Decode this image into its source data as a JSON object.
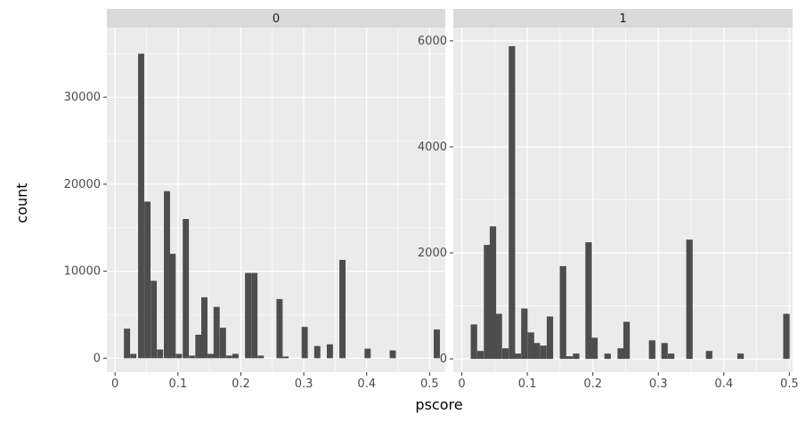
{
  "chart_data": {
    "type": "bar",
    "xlabel": "pscore",
    "ylabel": "count",
    "colors": {
      "bar": "#4d4d4d",
      "panel_background": "#ebebeb",
      "strip_background": "#d9d9d9",
      "gridline": "#ffffff"
    },
    "facets": [
      {
        "strip_label": "0",
        "xlim": [
          -0.013,
          0.525
        ],
        "ylim": [
          -1600,
          38000
        ],
        "x_ticks": [
          0,
          0.1,
          0.2,
          0.3,
          0.4,
          0.5
        ],
        "x_tick_labels": [
          "0",
          "0.1",
          "0.2",
          "0.3",
          "0.4",
          "0.5"
        ],
        "y_ticks": [
          0,
          10000,
          20000,
          30000
        ],
        "y_tick_labels": [
          "0",
          "10000",
          "20000",
          "30000"
        ],
        "bin_width": 0.0098,
        "bins": [
          {
            "x": 0.019,
            "count": 3400
          },
          {
            "x": 0.029,
            "count": 500
          },
          {
            "x": 0.0415,
            "count": 35000
          },
          {
            "x": 0.0515,
            "count": 18000
          },
          {
            "x": 0.0615,
            "count": 8900
          },
          {
            "x": 0.0715,
            "count": 1000
          },
          {
            "x": 0.0825,
            "count": 19200
          },
          {
            "x": 0.0915,
            "count": 12000
          },
          {
            "x": 0.1015,
            "count": 500
          },
          {
            "x": 0.1125,
            "count": 16000
          },
          {
            "x": 0.1225,
            "count": 300
          },
          {
            "x": 0.1325,
            "count": 2700
          },
          {
            "x": 0.142,
            "count": 7000
          },
          {
            "x": 0.152,
            "count": 500
          },
          {
            "x": 0.1615,
            "count": 5900
          },
          {
            "x": 0.1715,
            "count": 3500
          },
          {
            "x": 0.1815,
            "count": 300
          },
          {
            "x": 0.1915,
            "count": 500
          },
          {
            "x": 0.2115,
            "count": 9800
          },
          {
            "x": 0.2215,
            "count": 9800
          },
          {
            "x": 0.2315,
            "count": 300
          },
          {
            "x": 0.2615,
            "count": 6800
          },
          {
            "x": 0.271,
            "count": 200
          },
          {
            "x": 0.3015,
            "count": 3600
          },
          {
            "x": 0.3215,
            "count": 1400
          },
          {
            "x": 0.3415,
            "count": 1600
          },
          {
            "x": 0.3615,
            "count": 11300
          },
          {
            "x": 0.4015,
            "count": 1100
          },
          {
            "x": 0.4415,
            "count": 900
          },
          {
            "x": 0.5115,
            "count": 3300
          }
        ]
      },
      {
        "strip_label": "1",
        "xlim": [
          -0.013,
          0.505
        ],
        "ylim": [
          -250,
          6250
        ],
        "x_ticks": [
          0,
          0.1,
          0.2,
          0.3,
          0.4,
          0.5
        ],
        "x_tick_labels": [
          "0",
          "0.1",
          "0.2",
          "0.3",
          "0.4",
          "0.5"
        ],
        "y_ticks": [
          0,
          2000,
          4000,
          6000
        ],
        "y_tick_labels": [
          "0",
          "2000",
          "4000",
          "6000"
        ],
        "bin_width": 0.0098,
        "bins": [
          {
            "x": 0.0185,
            "count": 650
          },
          {
            "x": 0.0285,
            "count": 150
          },
          {
            "x": 0.0385,
            "count": 2150
          },
          {
            "x": 0.0475,
            "count": 2500
          },
          {
            "x": 0.0565,
            "count": 850
          },
          {
            "x": 0.0665,
            "count": 200
          },
          {
            "x": 0.0765,
            "count": 5900
          },
          {
            "x": 0.0855,
            "count": 100
          },
          {
            "x": 0.0955,
            "count": 950
          },
          {
            "x": 0.1055,
            "count": 500
          },
          {
            "x": 0.1145,
            "count": 300
          },
          {
            "x": 0.1245,
            "count": 250
          },
          {
            "x": 0.1345,
            "count": 800
          },
          {
            "x": 0.1545,
            "count": 1750
          },
          {
            "x": 0.1645,
            "count": 50
          },
          {
            "x": 0.1745,
            "count": 100
          },
          {
            "x": 0.1935,
            "count": 2200
          },
          {
            "x": 0.2025,
            "count": 400
          },
          {
            "x": 0.2225,
            "count": 100
          },
          {
            "x": 0.2425,
            "count": 200
          },
          {
            "x": 0.2515,
            "count": 700
          },
          {
            "x": 0.2905,
            "count": 350
          },
          {
            "x": 0.3095,
            "count": 300
          },
          {
            "x": 0.3195,
            "count": 100
          },
          {
            "x": 0.3475,
            "count": 2250
          },
          {
            "x": 0.3775,
            "count": 150
          },
          {
            "x": 0.4255,
            "count": 100
          },
          {
            "x": 0.4955,
            "count": 850
          }
        ]
      }
    ]
  }
}
